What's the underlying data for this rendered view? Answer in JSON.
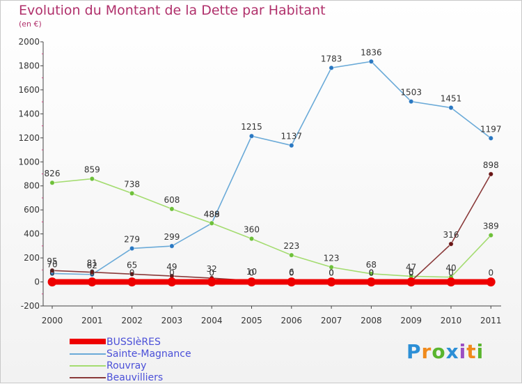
{
  "title": "Evolution du Montant de la Dette par Habitant",
  "subtitle": "(en €)",
  "logo_text": "Proxiti",
  "logo_colors": [
    "#2c8fd6",
    "#f08a1c",
    "#5ab52e",
    "#2c8fd6",
    "#9b4fc2",
    "#f08a1c",
    "#5ab52e"
  ],
  "chart_data": {
    "type": "line",
    "title": "Evolution du Montant de la Dette par Habitant",
    "subtitle": "(en €)",
    "xlabel": "",
    "ylabel": "",
    "x": [
      "2000",
      "2001",
      "2002",
      "2003",
      "2004",
      "2005",
      "2006",
      "2007",
      "2008",
      "2009",
      "2010",
      "2011"
    ],
    "ylim": [
      -200,
      2000
    ],
    "yticks": [
      -200,
      0,
      200,
      400,
      600,
      800,
      1000,
      1200,
      1400,
      1600,
      1800,
      2000
    ],
    "grid": false,
    "legend_position": "bottom-left",
    "series": [
      {
        "name": "BUSSIèRES",
        "color": "#ee0000",
        "values": [
          0,
          0,
          0,
          0,
          0,
          0,
          0,
          0,
          0,
          0,
          0,
          0
        ],
        "labels": [
          "0",
          "0",
          "0",
          "0",
          "0",
          "0",
          "0",
          "0",
          "0",
          "0",
          "0",
          "0"
        ]
      },
      {
        "name": "Sainte-Magnance",
        "color": "#6aaad8",
        "marker": "#2a78c2",
        "values": [
          70,
          62,
          279,
          299,
          488,
          1215,
          1137,
          1783,
          1836,
          1503,
          1451,
          1197
        ],
        "labels": [
          "70",
          "62",
          "279",
          "299",
          "488",
          "1215",
          "1137",
          "1783",
          "1836",
          "1503",
          "1451",
          "1197"
        ]
      },
      {
        "name": "Rouvray",
        "color": "#a4dc70",
        "marker": "#6ec03a",
        "values": [
          826,
          859,
          738,
          608,
          489,
          360,
          223,
          123,
          68,
          47,
          40,
          389
        ],
        "labels": [
          "826",
          "859",
          "738",
          "608",
          "489",
          "360",
          "223",
          "123",
          "68",
          "47",
          "40",
          "389"
        ]
      },
      {
        "name": "Beauvilliers",
        "color": "#8a3a3a",
        "marker": "#6a1616",
        "values": [
          95,
          81,
          65,
          49,
          32,
          10,
          6,
          0,
          0,
          6,
          316,
          898
        ],
        "labels": [
          "95",
          "81",
          "65",
          "49",
          "32",
          "10",
          "6",
          "0",
          "0",
          "6",
          "316",
          "898"
        ]
      }
    ]
  }
}
